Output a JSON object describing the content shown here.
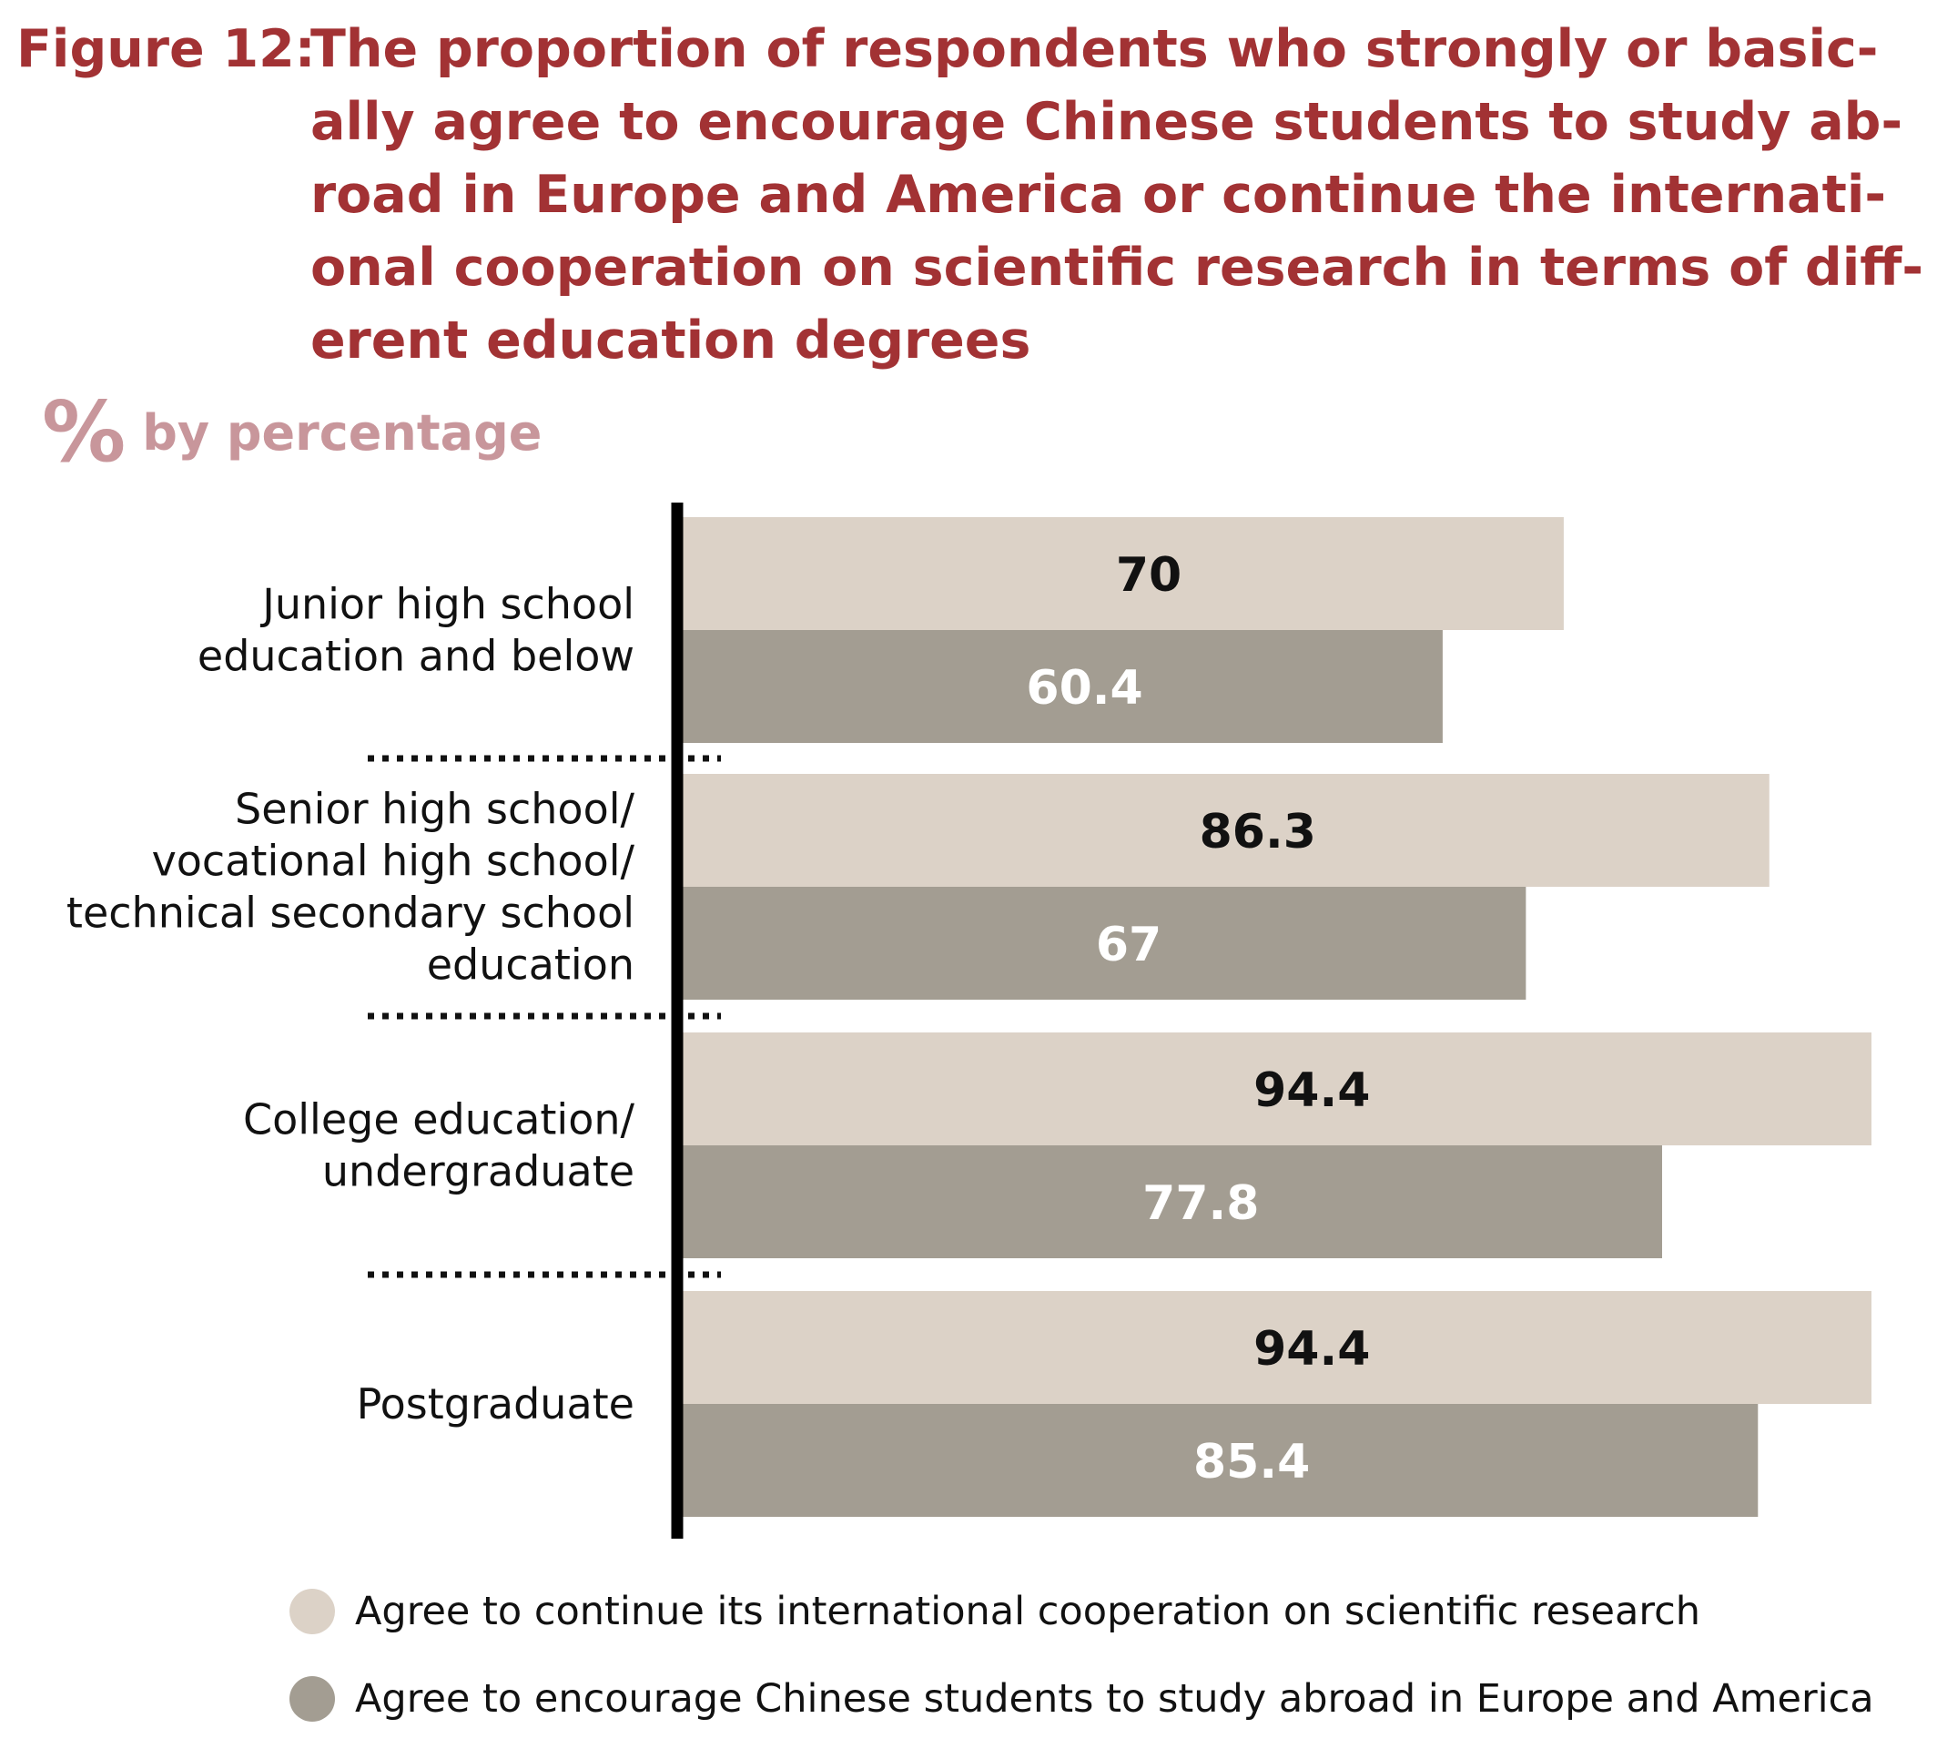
{
  "title": {
    "prefix": "Figure 12:",
    "lines": [
      "The proportion of respondents who strongly or basic-",
      "ally agree to encourage Chinese students to study ab-",
      "road in Europe and America or continue the internati-",
      "onal cooperation on scientific research in terms of diff-",
      "erent education degrees"
    ]
  },
  "unit_label": {
    "symbol": "%",
    "text": "by percentage"
  },
  "colors": {
    "title": "#a23234",
    "series_light": "#dcd2c7",
    "series_dark": "#a39d92",
    "unit": "#c8969b"
  },
  "chart_data": {
    "type": "bar",
    "orientation": "horizontal",
    "categories": [
      [
        "Junior high school",
        "education and below"
      ],
      [
        "Senior high school/",
        "vocational high school/",
        "technical secondary school",
        "education"
      ],
      [
        "College education/",
        "undergraduate"
      ],
      [
        "Postgraduate"
      ]
    ],
    "series": [
      {
        "name": "Agree to continue its international cooperation on scientific research",
        "values": [
          70,
          86.3,
          94.4,
          94.4
        ]
      },
      {
        "name": "Agree to encourage Chinese students to study abroad in Europe and America",
        "values": [
          60.4,
          67,
          77.8,
          85.4
        ]
      }
    ],
    "value_labels": [
      [
        "70",
        "86.3",
        "94.4",
        "94.4"
      ],
      [
        "60.4",
        "67",
        "77.8",
        "85.4"
      ]
    ],
    "xlim": [
      0,
      100
    ],
    "grid": false,
    "legend_position": "bottom"
  }
}
